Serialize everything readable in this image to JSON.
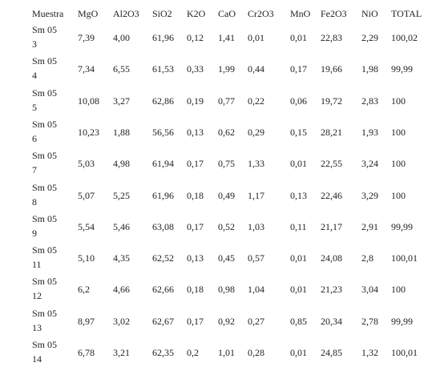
{
  "table": {
    "header": [
      "Muestra",
      "MgO",
      "Al2O3",
      "SiO2",
      "K2O",
      "CaO",
      "Cr2O3",
      "MnO",
      "Fe2O3",
      "NiO",
      "TOTAL"
    ],
    "rows": [
      [
        "Sm 05 3",
        "7,39",
        "4,00",
        "61,96",
        "0,12",
        "1,41",
        "0,01",
        "0,01",
        "22,83",
        "2,29",
        "100,02"
      ],
      [
        "Sm 05 4",
        "7,34",
        "6,55",
        "61,53",
        "0,33",
        "1,99",
        "0,44",
        "0,17",
        "19,66",
        "1,98",
        "99,99"
      ],
      [
        "Sm 05 5",
        "10,08",
        "3,27",
        "62,86",
        "0,19",
        "0,77",
        "0,22",
        "0,06",
        "19,72",
        "2,83",
        "100"
      ],
      [
        "Sm 05 6",
        "10,23",
        "1,88",
        "56,56",
        "0,13",
        "0,62",
        "0,29",
        "0,15",
        "28,21",
        "1,93",
        "100"
      ],
      [
        "Sm 05 7",
        "5,03",
        "4,98",
        "61,94",
        "0,17",
        "0,75",
        "1,33",
        "0,01",
        "22,55",
        "3,24",
        "100"
      ],
      [
        "Sm 05 8",
        "5,07",
        "5,25",
        "61,96",
        "0,18",
        "0,49",
        "1,17",
        "0,13",
        "22,46",
        "3,29",
        "100"
      ],
      [
        "Sm 05 9",
        "5,54",
        "5,46",
        "63,08",
        "0,17",
        "0,52",
        "1,03",
        "0,11",
        "21,17",
        "2,91",
        "99,99"
      ],
      [
        "Sm 05 11",
        "5,10",
        "4,35",
        "62,52",
        "0,13",
        "0,45",
        "0,57",
        "0,01",
        "24,08",
        "2,8",
        "100,01"
      ],
      [
        "Sm 05 12",
        "6,2",
        "4,66",
        "62,66",
        "0,18",
        "0,98",
        "1,04",
        "0,01",
        "21,23",
        "3,04",
        "100"
      ],
      [
        "Sm 05 13",
        "8,97",
        "3,02",
        "62,67",
        "0,17",
        "0,92",
        "0,27",
        "0,85",
        "20,34",
        "2,78",
        "99,99"
      ],
      [
        "Sm 05 14",
        "6,78",
        "3,21",
        "62,35",
        "0,2",
        "1,01",
        "0,28",
        "0,01",
        "24,85",
        "1,32",
        "100,01"
      ]
    ]
  }
}
